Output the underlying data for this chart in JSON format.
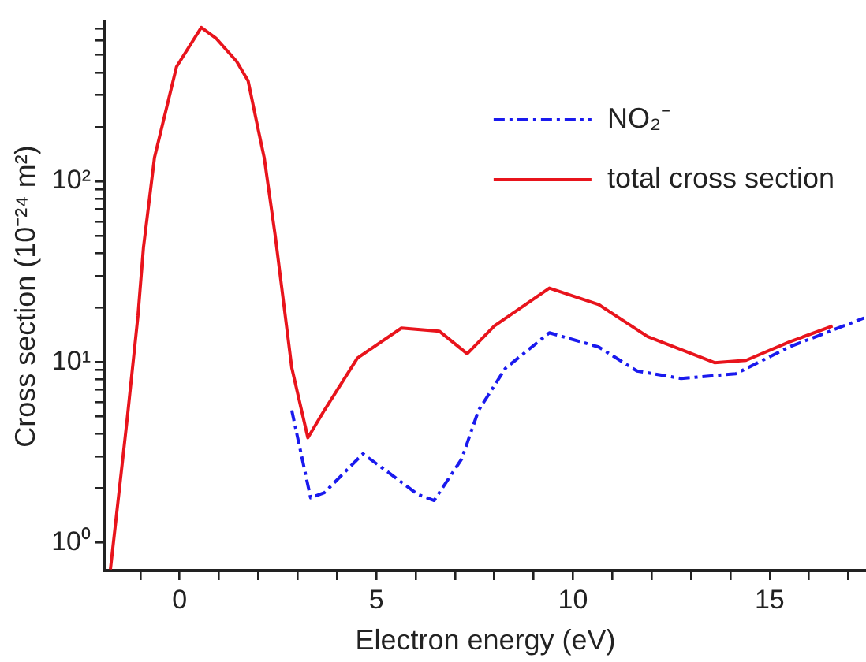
{
  "chart_data": {
    "type": "line",
    "xlabel": "Electron energy (eV)",
    "ylabel": "Cross section (10⁻²⁴ m²)",
    "log": "y",
    "grid": false,
    "legend": "top right",
    "marker": "none",
    "xlim": [
      -1.9,
      17.45
    ],
    "xticks": [
      {
        "value": -1,
        "label": null
      },
      0,
      {
        "value": 1,
        "label": null
      },
      {
        "value": 2,
        "label": null
      },
      {
        "value": 3,
        "label": null
      },
      {
        "value": 4,
        "label": null
      },
      5,
      {
        "value": 6,
        "label": null
      },
      {
        "value": 7,
        "label": null
      },
      {
        "value": 8,
        "label": null
      },
      {
        "value": 9,
        "label": null
      },
      10,
      {
        "value": 11,
        "label": null
      },
      {
        "value": 12,
        "label": null
      },
      {
        "value": 13,
        "label": null
      },
      {
        "value": 14,
        "label": null
      },
      15,
      {
        "value": 16,
        "label": null
      },
      {
        "value": 17,
        "label": null
      }
    ],
    "ylim": [
      0.71,
      760
    ],
    "yticks": [
      {
        "value": 1,
        "label": "10⁰"
      },
      {
        "value": 2,
        "label": null
      },
      {
        "value": 3,
        "label": null
      },
      {
        "value": 4,
        "label": null
      },
      {
        "value": 5,
        "label": null
      },
      {
        "value": 6,
        "label": null
      },
      {
        "value": 7,
        "label": null
      },
      {
        "value": 8,
        "label": null
      },
      {
        "value": 9,
        "label": null
      },
      {
        "value": 10,
        "label": "10¹"
      },
      {
        "value": 20,
        "label": null
      },
      {
        "value": 30,
        "label": null
      },
      {
        "value": 40,
        "label": null
      },
      {
        "value": 50,
        "label": null
      },
      {
        "value": 60,
        "label": null
      },
      {
        "value": 70,
        "label": null
      },
      {
        "value": 80,
        "label": null
      },
      {
        "value": 90,
        "label": null
      },
      {
        "value": 100,
        "label": "10²"
      },
      {
        "value": 200,
        "label": null
      },
      {
        "value": 300,
        "label": null
      },
      {
        "value": 400,
        "label": null
      },
      {
        "value": 500,
        "label": null
      },
      {
        "value": 600,
        "label": null
      },
      {
        "value": 700,
        "label": null
      }
    ],
    "series": [
      {
        "name": "NO₂⁻",
        "color": "#1a1aee",
        "line_style": "dashed",
        "x": [
          2.85,
          3.33,
          3.68,
          4.66,
          5.36,
          6.05,
          6.47,
          7.17,
          7.6,
          8.28,
          9.4,
          10.65,
          11.63,
          12.75,
          14.14,
          15.5,
          17.4
        ],
        "values": [
          5.4,
          1.77,
          1.89,
          3.1,
          2.4,
          1.85,
          1.71,
          2.9,
          5.4,
          9.2,
          14.5,
          12.1,
          8.9,
          8.1,
          8.6,
          12.1,
          17.5
        ]
      },
      {
        "name": "total cross section",
        "color": "#e8141c",
        "line_style": "solid",
        "x": [
          -1.76,
          -1.34,
          -1.06,
          -0.92,
          -0.64,
          -0.08,
          0.55,
          0.92,
          1.45,
          1.74,
          2.0,
          2.15,
          2.43,
          2.85,
          3.26,
          3.68,
          4.52,
          5.64,
          6.6,
          7.31,
          8.0,
          9.4,
          10.65,
          11.9,
          13.6,
          14.4,
          15.5,
          16.6
        ],
        "values": [
          0.71,
          4.7,
          18,
          43,
          135,
          430,
          710,
          620,
          460,
          360,
          192,
          135,
          50,
          9.3,
          3.8,
          5.4,
          10.5,
          15.4,
          14.8,
          11.1,
          15.8,
          25.6,
          20.8,
          13.8,
          9.9,
          10.2,
          12.9,
          15.8
        ]
      }
    ]
  }
}
